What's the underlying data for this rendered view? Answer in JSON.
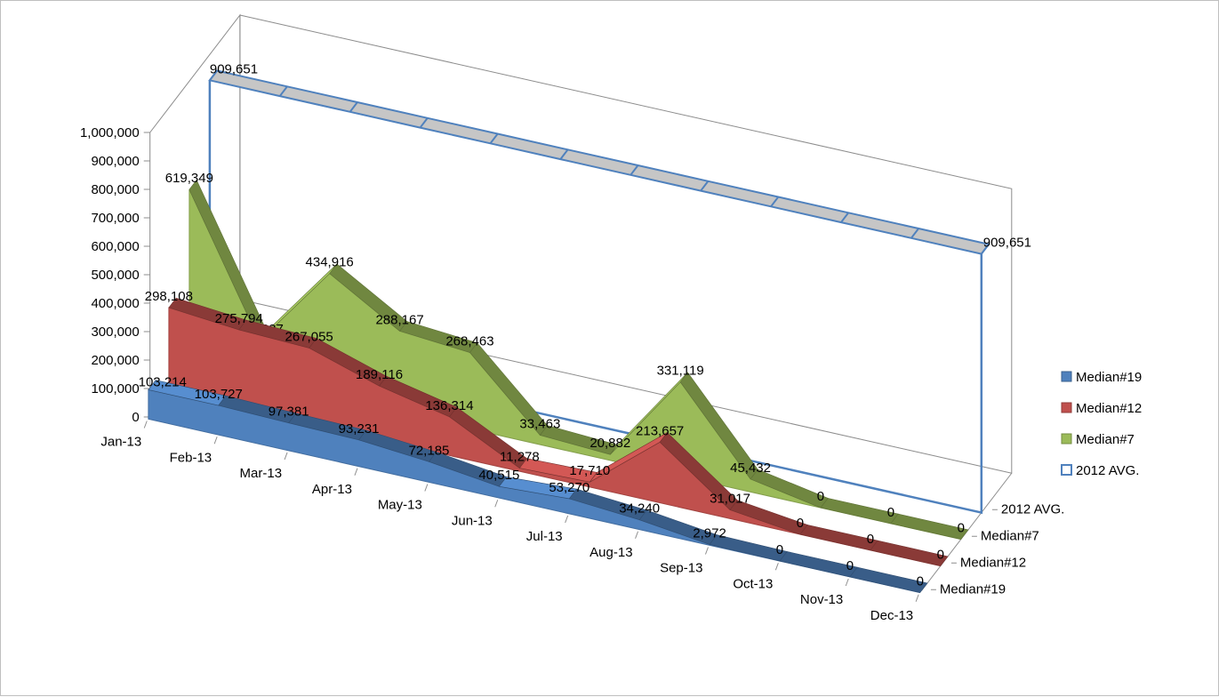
{
  "chart_data": {
    "type": "area",
    "title": "",
    "xlabel": "",
    "ylabel": "",
    "ylim": [
      0,
      1000000
    ],
    "y_ticks": [
      "0",
      "100,000",
      "200,000",
      "300,000",
      "400,000",
      "500,000",
      "600,000",
      "700,000",
      "800,000",
      "900,000",
      "1,000,000"
    ],
    "categories": [
      "Jan-13",
      "Feb-13",
      "Mar-13",
      "Apr-13",
      "May-13",
      "Jun-13",
      "Jul-13",
      "Aug-13",
      "Sep-13",
      "Oct-13",
      "Nov-13",
      "Dec-13"
    ],
    "depth_categories": [
      "Median#19",
      "Median#12",
      "Median#7",
      "2012 AVG."
    ],
    "legend_position": "right",
    "gridlines": false,
    "series": [
      {
        "name": "Median#19",
        "color": "#4f81bd",
        "values": [
          103214,
          103727,
          97381,
          93231,
          72185,
          40515,
          53270,
          34240,
          2972,
          0,
          0,
          0
        ],
        "labels": [
          "103,214",
          "103,727",
          "97,381",
          "93,231",
          "72,185",
          "40,515",
          "53,270",
          "34,240",
          "2,972",
          "0",
          "0",
          "0"
        ]
      },
      {
        "name": "Median#12",
        "color": "#c0504d",
        "values": [
          298108,
          275794,
          267055,
          189116,
          136314,
          11278,
          17710,
          213657,
          31017,
          0,
          0,
          0
        ],
        "labels": [
          "298,108",
          "275,794",
          "267,055",
          "189,116",
          "136,314",
          "11,278",
          "17,710",
          "213,657",
          "31,017",
          "0",
          "0",
          "0"
        ]
      },
      {
        "name": "Median#7",
        "color": "#9bbb59",
        "values": [
          619349,
          143627,
          434916,
          288167,
          268463,
          33463,
          20882,
          331119,
          45432,
          0,
          0,
          0
        ],
        "labels": [
          "619,349",
          "143,627",
          "434,916",
          "288,167",
          "268,463",
          "33,463",
          "20,882",
          "331,119",
          "45,432",
          "0",
          "0",
          "0"
        ]
      },
      {
        "name": "2012 AVG.",
        "color": "#4f81bd",
        "values": [
          909651,
          909651,
          909651,
          909651,
          909651,
          909651,
          909651,
          909651,
          909651,
          909651,
          909651,
          909651
        ],
        "labels": [
          "909,651",
          "909,651"
        ]
      }
    ]
  }
}
